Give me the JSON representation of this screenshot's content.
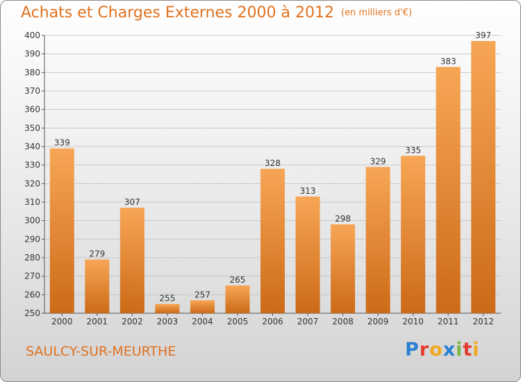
{
  "title": "Achats et Charges Externes 2000 à 2012",
  "title_unit": "(en milliers d'€)",
  "commune": "SAULCY-SUR-MEURTHE",
  "logo": {
    "letters": [
      "P",
      "r",
      "o",
      "x",
      "i",
      "t",
      "i"
    ],
    "colors": [
      "#2a7fd4",
      "#e23b2e",
      "#f0a81e",
      "#2a7fd4",
      "#7ab648",
      "#e23b2e",
      "#f0a81e"
    ]
  },
  "colors": {
    "accent": "#e0721f",
    "bar_light": "#f7a656",
    "bar_dark": "#cc6a17"
  },
  "chart_data": {
    "type": "bar",
    "categories": [
      "2000",
      "2001",
      "2002",
      "2003",
      "2004",
      "2005",
      "2006",
      "2007",
      "2008",
      "2009",
      "2010",
      "2011",
      "2012"
    ],
    "values": [
      339,
      279,
      307,
      255,
      257,
      265,
      328,
      313,
      298,
      329,
      335,
      383,
      397
    ],
    "title": "Achats et Charges Externes 2000 à 2012",
    "subtitle": "(en milliers d'€)",
    "ylim": [
      250,
      400
    ],
    "yticks": [
      250,
      260,
      270,
      280,
      290,
      300,
      310,
      320,
      330,
      340,
      350,
      360,
      370,
      380,
      390,
      400
    ],
    "grid": true
  }
}
